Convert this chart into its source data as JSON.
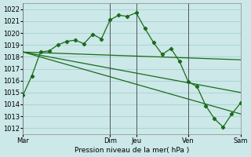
{
  "title": "Pression niveau de la mer( hPa )",
  "bg_color": "#cce8e8",
  "grid_color": "#aad4d4",
  "line_color": "#1a6b1a",
  "ylim": [
    1011.5,
    1022.5
  ],
  "yticks": [
    1012,
    1013,
    1014,
    1015,
    1016,
    1017,
    1018,
    1019,
    1020,
    1021,
    1022
  ],
  "xtick_labels": [
    "Mar",
    "Dim",
    "Jeu",
    "Ven",
    "Sam"
  ],
  "xtick_positions": [
    0,
    10,
    13,
    19,
    25
  ],
  "vlines": [
    0,
    10,
    13,
    19,
    25
  ],
  "series1": {
    "x": [
      0,
      1,
      2,
      3,
      4,
      5,
      6,
      7,
      8,
      9,
      10,
      11,
      12,
      13,
      14,
      15,
      16,
      17,
      18,
      19,
      20,
      21,
      22,
      23,
      24,
      25
    ],
    "y": [
      1014.8,
      1016.4,
      1018.4,
      1018.5,
      1019.0,
      1019.3,
      1019.4,
      1019.1,
      1019.9,
      1019.5,
      1021.1,
      1021.5,
      1021.4,
      1021.7,
      1020.4,
      1019.2,
      1018.2,
      1018.7,
      1017.6,
      1015.9,
      1015.5,
      1013.9,
      1012.8,
      1012.1,
      1013.2,
      1014.1
    ]
  },
  "series2": {
    "x": [
      0,
      25
    ],
    "y": [
      1018.4,
      1017.75
    ]
  },
  "series3": {
    "x": [
      0,
      25
    ],
    "y": [
      1018.4,
      1015.0
    ]
  },
  "series4": {
    "x": [
      0,
      25
    ],
    "y": [
      1018.4,
      1013.2
    ]
  }
}
